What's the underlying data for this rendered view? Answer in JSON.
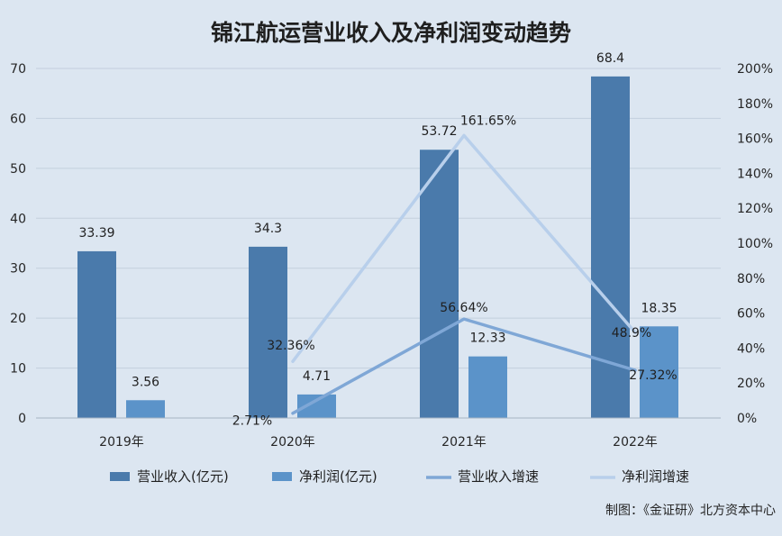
{
  "chart_data": {
    "type": "bar",
    "title": "锦江航运营业收入及净利润变动趋势",
    "categories": [
      "2019年",
      "2020年",
      "2021年",
      "2022年"
    ],
    "y_left": {
      "ylim": [
        0,
        70
      ],
      "ticks": [
        "0",
        "10",
        "20",
        "30",
        "40",
        "50",
        "60",
        "70"
      ]
    },
    "y_right": {
      "ylim": [
        0,
        200
      ],
      "ticks": [
        "0%",
        "20%",
        "40%",
        "60%",
        "80%",
        "100%",
        "120%",
        "140%",
        "160%",
        "180%",
        "200%"
      ]
    },
    "grid": true,
    "legend_position": "bottom",
    "series": [
      {
        "name": "营业收入(亿元)",
        "type": "bar",
        "axis": "left",
        "color": "#4a7aab",
        "values": [
          33.39,
          34.3,
          53.72,
          68.4
        ],
        "labels": [
          "33.39",
          "34.3",
          "53.72",
          "68.4"
        ]
      },
      {
        "name": "净利润(亿元)",
        "type": "bar",
        "axis": "left",
        "color": "#5b93c9",
        "values": [
          3.56,
          4.71,
          12.33,
          18.35
        ],
        "labels": [
          "3.56",
          "4.71",
          "12.33",
          "18.35"
        ]
      },
      {
        "name": "营业收入增速",
        "type": "line",
        "axis": "right",
        "color": "#7fa7d6",
        "values": [
          null,
          2.71,
          56.64,
          27.32
        ],
        "labels": [
          "",
          "2.71%",
          "56.64%",
          "27.32%"
        ]
      },
      {
        "name": "净利润增速",
        "type": "line",
        "axis": "right",
        "color": "#b8cfeb",
        "values": [
          null,
          32.36,
          161.65,
          48.9
        ],
        "labels": [
          "",
          "32.36%",
          "161.65%",
          "48.9%"
        ]
      }
    ]
  },
  "footer": {
    "credit": "制图：《金证研》北方资本中心"
  }
}
